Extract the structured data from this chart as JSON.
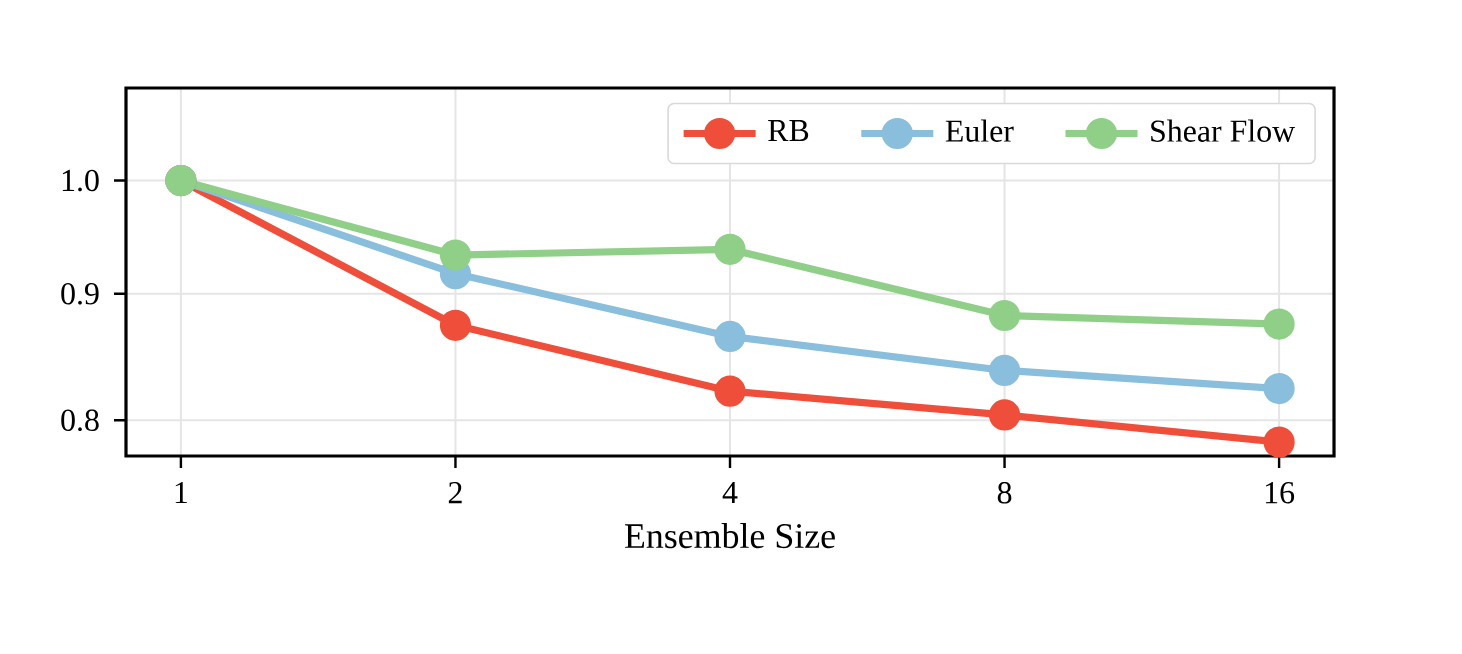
{
  "chart_data": {
    "type": "line",
    "xlabel": "Ensemble Size",
    "categories": [
      "1",
      "2",
      "4",
      "8",
      "16"
    ],
    "series": [
      {
        "name": "RB",
        "color": "#ef4f3a",
        "values": [
          1.0,
          0.874,
          0.822,
          0.804,
          0.784
        ]
      },
      {
        "name": "Euler",
        "color": "#89bedc",
        "values": [
          1.0,
          0.917,
          0.865,
          0.838,
          0.824
        ]
      },
      {
        "name": "Shear Flow",
        "color": "#8fcf88",
        "values": [
          1.0,
          0.933,
          0.938,
          0.882,
          0.875
        ]
      }
    ],
    "log": "y",
    "ylim": [
      0.774,
      1.09
    ],
    "yticks": [
      0.8,
      0.9,
      {
        "value": 1.0,
        "label": "1.0"
      }
    ],
    "grid": true,
    "legend": "top right",
    "marker": "circle",
    "line_style": "solid"
  }
}
